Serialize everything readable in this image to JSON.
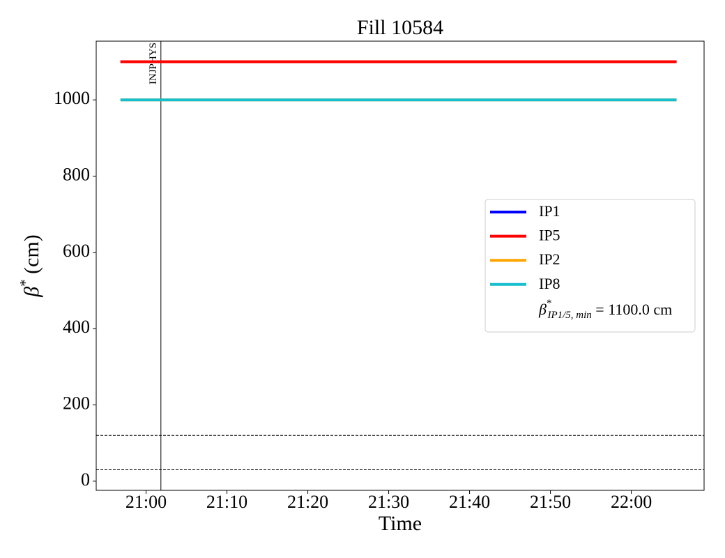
{
  "chart_data": {
    "type": "line",
    "title": "Fill 10584",
    "xlabel": "Time",
    "ylabel": {
      "symbol": "β",
      "sup": "*",
      "text": " (cm)"
    },
    "x": [
      "20:56:50",
      "22:05:36"
    ],
    "series": [
      {
        "name": "IP1",
        "color": "#0000ff",
        "values": [
          1100,
          1100
        ]
      },
      {
        "name": "IP5",
        "color": "#ff0000",
        "values": [
          1100,
          1100
        ]
      },
      {
        "name": "IP2",
        "color": "#ffa500",
        "values": [
          1000,
          1000
        ]
      },
      {
        "name": "IP8",
        "color": "#17becf",
        "values": [
          1000,
          1000
        ]
      }
    ],
    "legend_note": {
      "symbol": "β",
      "sup": "*",
      "sub": "IP1/5, min",
      "text": " = 1100.0 cm"
    },
    "legend": "center right",
    "vlines": [
      {
        "x": "21:01:50",
        "label": "INJPHYS"
      }
    ],
    "hlines": [
      120,
      30
    ],
    "xlim": [
      "20:53:50",
      "22:09:00"
    ],
    "xticks": [
      "21:00",
      "21:10",
      "21:20",
      "21:30",
      "21:40",
      "21:50",
      "22:00"
    ],
    "ylim": [
      -24,
      1154
    ],
    "yticks": [
      0,
      200,
      400,
      600,
      800,
      1000
    ],
    "grid": false
  }
}
